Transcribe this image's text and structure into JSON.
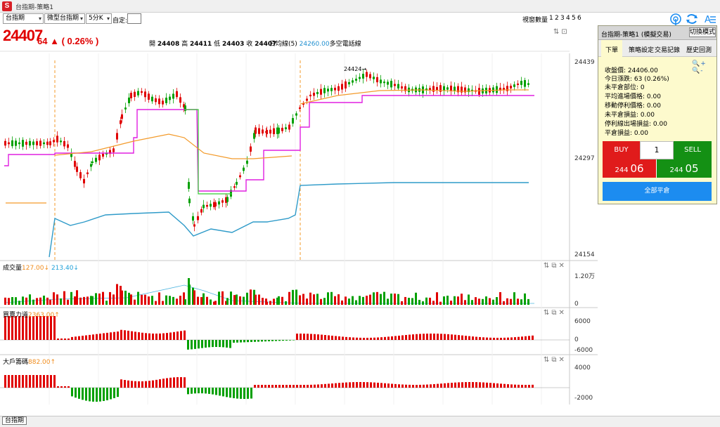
{
  "window": {
    "title": "台指期-策略1"
  },
  "toolbar": {
    "symbol_select": "台指期",
    "contract_select": "微型台指期",
    "interval_select": "5分K",
    "custom_label": "自定:",
    "view_count_label": "視窗數量",
    "view_counts": [
      "1",
      "2",
      "3",
      "4",
      "5",
      "6"
    ]
  },
  "header": {
    "last_price": "24407",
    "change": "64",
    "change_arrow": "▲",
    "change_pct": "( 0.26% )",
    "open_label": "開",
    "open": "24408",
    "high_label": "高",
    "high": "24411",
    "low_label": "低",
    "low": "24403",
    "close_label": "收",
    "close": "24407",
    "ma_label": "日均線(5)",
    "ma_value": "24260.00",
    "strategy_label": "多空電話線",
    "marker_label": "24424→"
  },
  "colors": {
    "up": "#e00000",
    "down": "#00a000",
    "ma_orange": "#f39a2a",
    "strategy_magenta": "#e020e0",
    "blue_line": "#2f9bc9",
    "buy": "#e01b1b",
    "sell": "#149014",
    "accent": "#1c8cf0"
  },
  "panes": {
    "main": {
      "y_labels": [
        "24439",
        "24297",
        "24154"
      ]
    },
    "volume": {
      "title": "成交量",
      "v1": "127.00↓",
      "v2": "213.40↓",
      "y_labels": [
        "1.20万",
        "0"
      ]
    },
    "force": {
      "title": "買賣力道",
      "v1": "2363.00↑",
      "y_labels": [
        "6000",
        "0",
        "-6000"
      ]
    },
    "big": {
      "title": "大戶籌碼",
      "v1": "882.00↑",
      "y_labels": [
        "4000",
        "-2000"
      ]
    }
  },
  "panel": {
    "title": "台指期-策略1 (模擬交易)",
    "mode_button": "切換模式",
    "tabs": [
      "下單",
      "策略設定",
      "交易記錄",
      "歷史回測"
    ],
    "info": [
      "收盤價: 24406.00",
      "今日漲跌: 63 (0.26%)",
      "未平倉部位: 0",
      "平均進場價格: 0.00",
      "移動停利價格: 0.00",
      "未平倉損益: 0.00",
      "停利線出場損益: 0.00",
      "平倉損益: 0.00"
    ],
    "buy_label": "BUY",
    "quantity": "1",
    "sell_label": "SELL",
    "buy_price_prefix": "244",
    "buy_price_suffix": "06",
    "sell_price_prefix": "244",
    "sell_price_suffix": "05",
    "close_all_label": "全部平倉"
  },
  "status": {
    "tab": "台指期"
  },
  "icons": [
    "app-logo-icon",
    "signal-icon",
    "refresh-icon",
    "chart-settings-icon",
    "zoom-in-icon",
    "zoom-out-icon",
    "pane-settings-icon",
    "pane-copy-icon",
    "pane-close-icon"
  ]
}
